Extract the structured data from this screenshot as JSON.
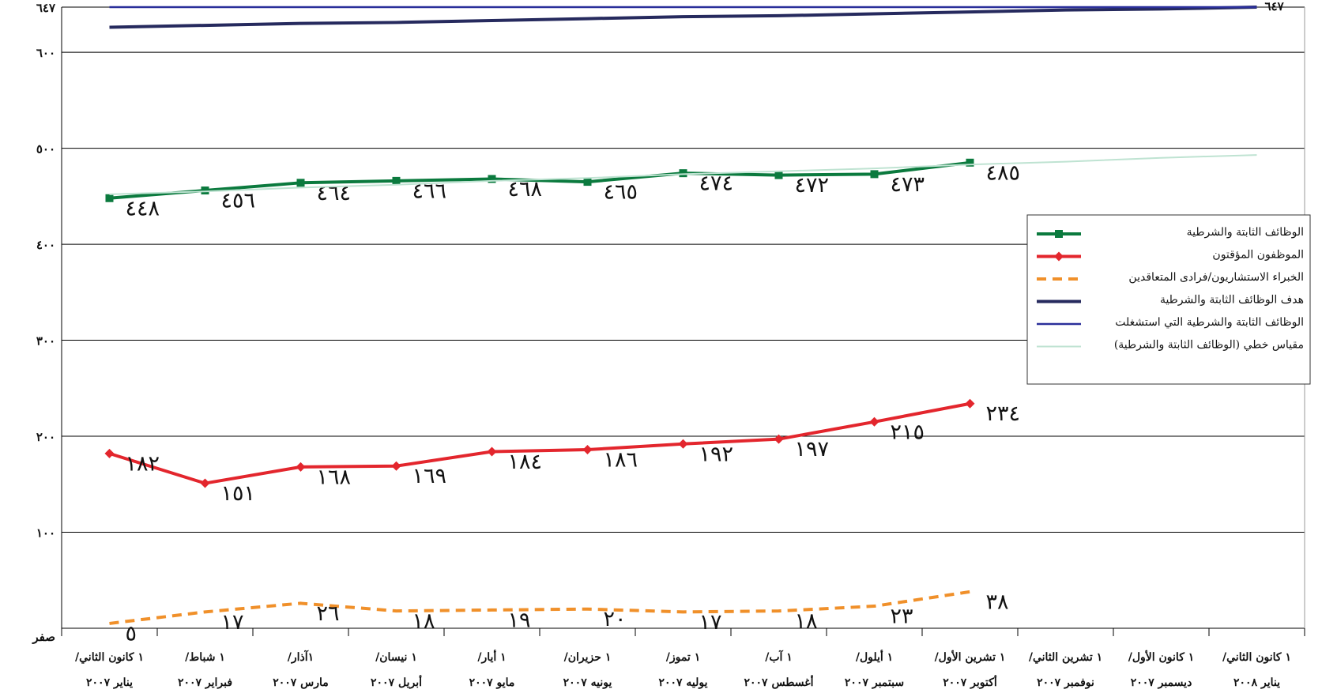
{
  "chart_data": {
    "type": "line",
    "categories": [
      [
        "١ كانون الثاني/",
        "يناير ٢٠٠٧"
      ],
      [
        "١ شباط/",
        "فبراير ٢٠٠٧"
      ],
      [
        "١آذار/",
        "مارس ٢٠٠٧"
      ],
      [
        "١ نيسان/",
        "أبريل ٢٠٠٧"
      ],
      [
        "١ أيار/",
        "مايو ٢٠٠٧"
      ],
      [
        "١ حزيران/",
        "يونيه ٢٠٠٧"
      ],
      [
        "١ تموز/",
        "يوليه ٢٠٠٧"
      ],
      [
        "١ آب/",
        "أغسطس ٢٠٠٧"
      ],
      [
        "١ أيلول/",
        "سبتمبر ٢٠٠٧"
      ],
      [
        "١ تشرين الأول/",
        "أكتوبر ٢٠٠٧"
      ],
      [
        "١ تشرين الثاني/",
        "نوفمبر ٢٠٠٧"
      ],
      [
        "١ كانون الأول/",
        "ديسمبر ٢٠٠٧"
      ],
      [
        "١ كانون الثاني/",
        "يناير ٢٠٠٨"
      ]
    ],
    "series": [
      {
        "name": "الوظائف الثابتة والشرطية",
        "color": "#0b7a3e",
        "marker": "square",
        "line_width": 4,
        "values": [
          448,
          456,
          464,
          466,
          468,
          465,
          474,
          472,
          473,
          485,
          null,
          null,
          null
        ],
        "value_labels": [
          "٤٤٨",
          "٤٥٦",
          "٤٦٤",
          "٤٦٦",
          "٤٦٨",
          "٤٦٥",
          "٤٧٤",
          "٤٧٢",
          "٤٧٣",
          "٤٨٥",
          null,
          null,
          null
        ]
      },
      {
        "name": "الموظفون المؤقتون",
        "color": "#e3262d",
        "marker": "diamond",
        "line_width": 4,
        "values": [
          182,
          151,
          168,
          169,
          184,
          186,
          192,
          197,
          215,
          234,
          null,
          null,
          null
        ],
        "value_labels": [
          "١٨٢",
          "١٥١",
          "١٦٨",
          "١٦٩",
          "١٨٤",
          "١٨٦",
          "١٩٢",
          "١٩٧",
          "٢١٥",
          "٢٣٤",
          null,
          null,
          null
        ]
      },
      {
        "name": "الخبراء الاستشاريون/فرادى المتعاقدين",
        "color": "#f0902a",
        "dash": true,
        "line_width": 4,
        "values": [
          5,
          17,
          26,
          18,
          19,
          20,
          17,
          18,
          23,
          38,
          null,
          null,
          null
        ],
        "value_labels": [
          "٥",
          "١٧",
          "٢٦",
          "١٨",
          "١٩",
          "٢٠",
          "١٧",
          "١٨",
          "٢٣",
          "٣٨",
          null,
          null,
          null
        ]
      },
      {
        "name": "هدف الوظائف الثابتة والشرطية",
        "color": "#262a5e",
        "line_width": 4,
        "values": [
          626,
          628,
          630,
          631,
          633,
          635,
          637,
          638,
          640,
          642,
          644,
          645,
          647
        ]
      },
      {
        "name": "الوظائف الثابتة والشرطية التي استشغلت",
        "color": "#2a2f9a",
        "line_width": 2.5,
        "values": [
          647,
          647,
          647,
          647,
          647,
          647,
          647,
          647,
          647,
          647,
          647,
          647,
          647
        ],
        "value_labels": [
          null,
          null,
          null,
          null,
          null,
          null,
          null,
          null,
          null,
          null,
          null,
          null,
          "٦٤٧"
        ]
      },
      {
        "name": "مقياس خطي (الوظائف الثابتة والشرطية)",
        "color": "#bfe3d2",
        "line_width": 2,
        "values": [
          452,
          455,
          459,
          462,
          466,
          469,
          473,
          476,
          479,
          483,
          486,
          490,
          493
        ]
      }
    ],
    "ylim": [
      0,
      647
    ],
    "yticks": [
      {
        "value": 0,
        "label": "صفر"
      },
      {
        "value": 100,
        "label": "١٠٠"
      },
      {
        "value": 200,
        "label": "٢٠٠"
      },
      {
        "value": 300,
        "label": "٣٠٠"
      },
      {
        "value": 400,
        "label": "٤٠٠"
      },
      {
        "value": 500,
        "label": "٥٠٠"
      },
      {
        "value": 600,
        "label": "٦٠٠"
      },
      {
        "value": 647,
        "label": "٦٤٧"
      }
    ],
    "grid": true,
    "legend": "right"
  }
}
